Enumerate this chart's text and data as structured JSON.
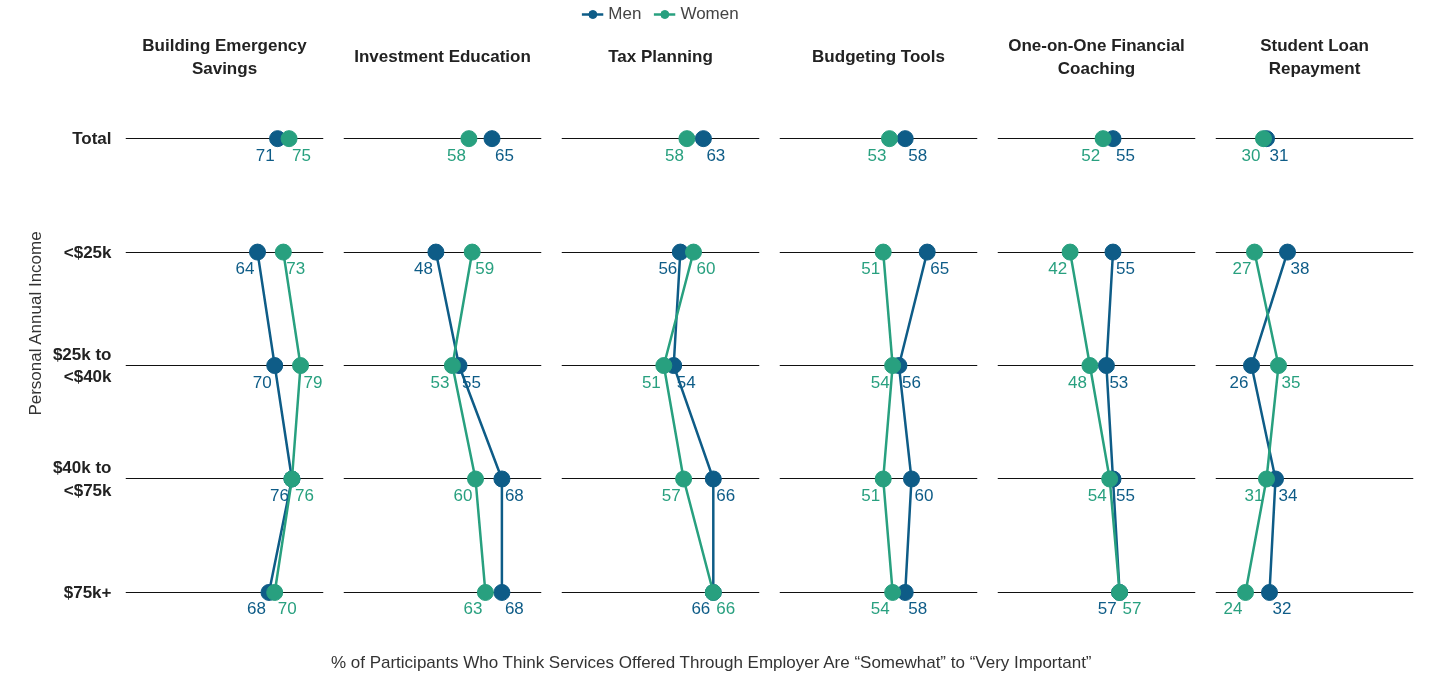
{
  "chart_data": [
    {
      "type": "line",
      "orientation": "horizontal",
      "title": "Building Emergency Savings",
      "ylabel": "Personal Annual Income",
      "xlabel": "% of Participants Who Think Services Offered Through Employer Are “Somewhat” to “Very Important”",
      "categories": [
        "Total",
        "<$25k",
        "$25k to <$40k",
        "$40k to <$75k",
        "$75k+"
      ],
      "xlim": [
        18,
        87
      ],
      "grid": "y",
      "tick_labels": "y",
      "marker": "circle",
      "data_labels": true,
      "series": [
        {
          "type": "scatter",
          "color": "#0e5c87",
          "values": [
            71,
            null,
            null,
            null,
            null
          ]
        },
        {
          "color": "#0e5c87",
          "values": [
            null,
            64,
            70,
            76,
            68
          ]
        },
        {
          "type": "scatter",
          "color": "#28a07f",
          "values": [
            75,
            null,
            null,
            null,
            null
          ]
        },
        {
          "color": "#28a07f",
          "values": [
            null,
            73,
            79,
            76,
            70
          ]
        }
      ]
    },
    {
      "type": "line",
      "orientation": "horizontal",
      "title": "Investment Education",
      "categories": [
        "Total",
        "<$25k",
        "$25k to <$40k",
        "$40k to <$75k",
        "$75k+"
      ],
      "xlim": [
        20,
        80
      ],
      "grid": "y",
      "tick_labels": false,
      "marker": "circle",
      "data_labels": true,
      "series": [
        {
          "type": "scatter",
          "color": "#0e5c87",
          "values": [
            65,
            null,
            null,
            null,
            null
          ]
        },
        {
          "color": "#0e5c87",
          "values": [
            null,
            48,
            55,
            68,
            68
          ]
        },
        {
          "type": "scatter",
          "color": "#28a07f",
          "values": [
            58,
            null,
            null,
            null,
            null
          ]
        },
        {
          "color": "#28a07f",
          "values": [
            null,
            59,
            53,
            60,
            63
          ]
        }
      ]
    },
    {
      "type": "line",
      "orientation": "horizontal",
      "title": "Tax Planning",
      "categories": [
        "Total",
        "<$25k",
        "$25k to <$40k",
        "$40k to <$75k",
        "$75k+"
      ],
      "xlim": [
        20,
        80
      ],
      "grid": "y",
      "legend": "top",
      "tick_labels": false,
      "marker": "circle",
      "data_labels": true,
      "series": [
        {
          "type": "scatter",
          "color": "#0e5c87",
          "values": [
            63,
            null,
            null,
            null,
            null
          ]
        },
        {
          "name": "Men",
          "color": "#0e5c87",
          "values": [
            null,
            56,
            54,
            66,
            66
          ]
        },
        {
          "type": "scatter",
          "color": "#28a07f",
          "values": [
            58,
            null,
            null,
            null,
            null
          ]
        },
        {
          "name": "Women",
          "color": "#28a07f",
          "values": [
            null,
            60,
            51,
            57,
            66
          ]
        }
      ]
    },
    {
      "type": "line",
      "orientation": "horizontal",
      "title": "Budgeting Tools",
      "categories": [
        "Total",
        "<$25k",
        "$25k to <$40k",
        "$40k to <$75k",
        "$75k+"
      ],
      "xlim": [
        18,
        81
      ],
      "grid": "y",
      "tick_labels": false,
      "marker": "circle",
      "data_labels": true,
      "series": [
        {
          "type": "scatter",
          "color": "#0e5c87",
          "values": [
            58,
            null,
            null,
            null,
            null
          ]
        },
        {
          "color": "#0e5c87",
          "values": [
            null,
            65,
            56,
            60,
            58
          ]
        },
        {
          "type": "scatter",
          "color": "#28a07f",
          "values": [
            53,
            null,
            null,
            null,
            null
          ]
        },
        {
          "color": "#28a07f",
          "values": [
            null,
            51,
            54,
            51,
            54
          ]
        }
      ]
    },
    {
      "type": "line",
      "orientation": "horizontal",
      "title": "One-on-One Financial Coaching",
      "categories": [
        "Total",
        "<$25k",
        "$25k to <$40k",
        "$40k to <$75k",
        "$75k+"
      ],
      "xlim": [
        20,
        80
      ],
      "grid": "y",
      "tick_labels": false,
      "marker": "circle",
      "data_labels": true,
      "series": [
        {
          "type": "scatter",
          "color": "#0e5c87",
          "values": [
            55,
            null,
            null,
            null,
            null
          ]
        },
        {
          "color": "#0e5c87",
          "values": [
            null,
            55,
            53,
            55,
            57
          ]
        },
        {
          "type": "scatter",
          "color": "#28a07f",
          "values": [
            52,
            null,
            null,
            null,
            null
          ]
        },
        {
          "color": "#28a07f",
          "values": [
            null,
            42,
            48,
            54,
            57
          ]
        }
      ]
    },
    {
      "type": "line",
      "orientation": "horizontal",
      "title": "Student Loan Repayment",
      "categories": [
        "Total",
        "<$25k",
        "$25k to <$40k",
        "$40k to <$75k",
        "$75k+"
      ],
      "xlim": [
        14,
        80
      ],
      "grid": "y",
      "tick_labels": false,
      "marker": "circle",
      "data_labels": true,
      "series": [
        {
          "type": "scatter",
          "color": "#0e5c87",
          "values": [
            31,
            null,
            null,
            null,
            null
          ]
        },
        {
          "color": "#0e5c87",
          "values": [
            null,
            38,
            26,
            34,
            32
          ]
        },
        {
          "type": "scatter",
          "color": "#28a07f",
          "values": [
            30,
            null,
            null,
            null,
            null
          ]
        },
        {
          "color": "#28a07f",
          "values": [
            null,
            27,
            35,
            31,
            24
          ]
        }
      ]
    }
  ]
}
